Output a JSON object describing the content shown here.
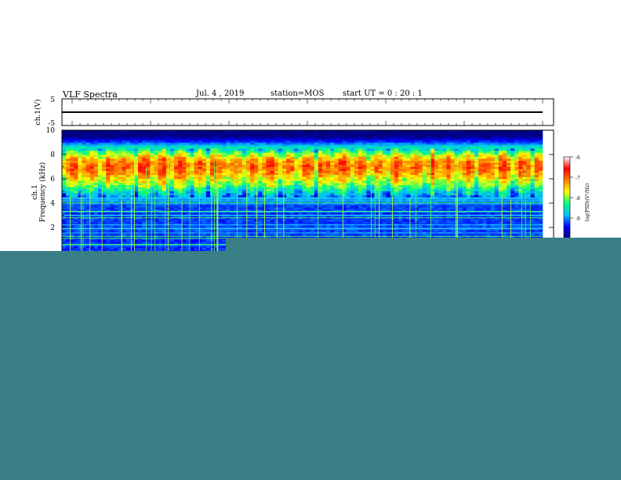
{
  "header": {
    "title": "VLF Spectra",
    "date": "Jul. 4 , 2019",
    "station": "station=MOS",
    "start": "start UT = 0 : 20 : 1"
  },
  "colors": {
    "overlay": "#3b7f86",
    "colormap": [
      "#000080",
      "#0000ff",
      "#00c0ff",
      "#00ff80",
      "#ffff00",
      "#ff8000",
      "#ff0000",
      "#ffffff"
    ]
  },
  "chart_data": [
    {
      "type": "line",
      "panel": "waveform",
      "ylabel": "ch.1(V)",
      "ylim": [
        -5,
        5
      ],
      "y_ticks": [
        "5",
        "-5"
      ],
      "series": [
        {
          "values": [
            0,
            0,
            0,
            0,
            0,
            0,
            0,
            0,
            0,
            0
          ]
        }
      ]
    },
    {
      "type": "heatmap",
      "panel": "spectrogram",
      "ylabel_line1": "ch.1",
      "ylabel_line2": "Frequency (kHz)",
      "ylim": [
        0,
        10
      ],
      "y_ticks": [
        "10",
        "8",
        "6",
        "4",
        "2"
      ],
      "colorbar": {
        "label": "log(PSD)(V²/Hz)",
        "range": [
          -10,
          -6
        ],
        "ticks": [
          "-6",
          "-7",
          "-8",
          "-9"
        ]
      },
      "intensity_profile": {
        "frequency_kHz": [
          0,
          1,
          2,
          3,
          4,
          4.5,
          5,
          5.5,
          6,
          6.5,
          7,
          7.5,
          8,
          8.5,
          9,
          9.5,
          10
        ],
        "log_psd": [
          -9.3,
          -9.3,
          -9.2,
          -9.3,
          -9.2,
          -8.8,
          -8.3,
          -7.8,
          -7.4,
          -7.0,
          -6.8,
          -7.0,
          -7.6,
          -8.4,
          -9.2,
          -10,
          -10
        ]
      }
    }
  ]
}
